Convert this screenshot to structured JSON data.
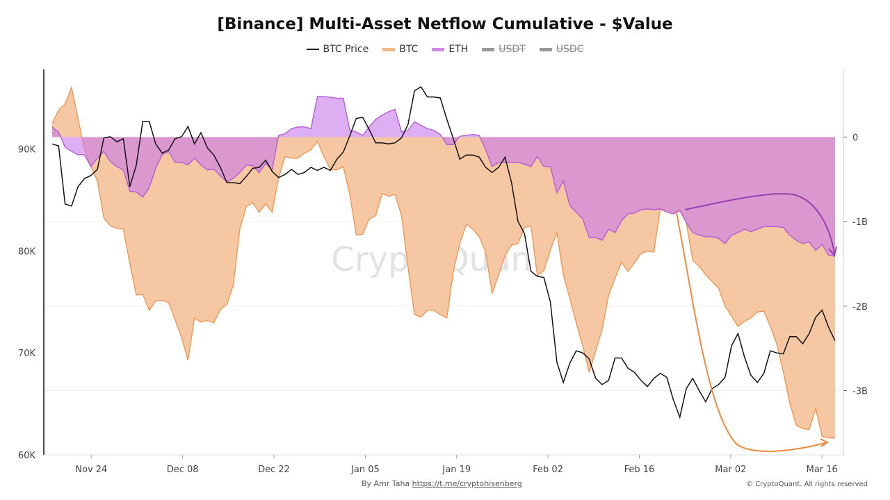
{
  "chart_data": {
    "type": "area",
    "title": "[Binance] Multi-Asset Netflow Cumulative - $Value",
    "legend": [
      {
        "name": "BTC Price",
        "color": "#111111",
        "hidden": false
      },
      {
        "name": "BTC",
        "color": "#f0924a",
        "hidden": false
      },
      {
        "name": "ETH",
        "color": "#b156d6",
        "hidden": false
      },
      {
        "name": "USDT",
        "color": "#999999",
        "hidden": true
      },
      {
        "name": "USDC",
        "color": "#999999",
        "hidden": true
      }
    ],
    "legend_placement": "top-center",
    "x_start": "Nov 18",
    "x_days": 120,
    "x_ticks": [
      {
        "label": "Nov 24",
        "day": 6
      },
      {
        "label": "Dec 08",
        "day": 20
      },
      {
        "label": "Dec 22",
        "day": 34
      },
      {
        "label": "Jan 05",
        "day": 48
      },
      {
        "label": "Jan 19",
        "day": 62
      },
      {
        "label": "Feb 02",
        "day": 76
      },
      {
        "label": "Feb 16",
        "day": 90
      },
      {
        "label": "Mar 02",
        "day": 104
      },
      {
        "label": "Mar 16",
        "day": 118
      }
    ],
    "left_axis": {
      "unit": "K",
      "ylim": [
        60,
        97.8
      ],
      "ticks": [
        {
          "v": 60,
          "label": "60K"
        },
        {
          "v": 70,
          "label": "70K"
        },
        {
          "v": 80,
          "label": "80K"
        },
        {
          "v": 90,
          "label": "90K"
        }
      ]
    },
    "right_axis": {
      "unit": "B",
      "ylim": [
        -3.76,
        0.8
      ],
      "ticks": [
        {
          "v": 0,
          "label": "0"
        },
        {
          "v": -1,
          "label": "-1B"
        },
        {
          "v": -2,
          "label": "-2B"
        },
        {
          "v": -3,
          "label": "-3B"
        }
      ]
    },
    "series": [
      {
        "name": "BTC Price",
        "axis": "left",
        "values": [
          90.5,
          90.3,
          84.6,
          84.4,
          86.3,
          87.1,
          87.4,
          88.0,
          91.1,
          91.2,
          90.7,
          91.0,
          86.3,
          88.4,
          92.7,
          92.7,
          90.5,
          89.6,
          89.9,
          91.0,
          91.2,
          92.2,
          90.5,
          91.6,
          90.1,
          89.4,
          88.2,
          86.7,
          86.7,
          86.6,
          87.3,
          88.1,
          88.2,
          88.9,
          87.8,
          87.2,
          87.5,
          88.0,
          87.5,
          87.7,
          88.2,
          87.9,
          88.2,
          87.9,
          89.0,
          89.7,
          91.3,
          93.0,
          93.1,
          91.9,
          90.6,
          90.6,
          90.5,
          90.6,
          91.1,
          92.4,
          95.7,
          96.1,
          95.1,
          95.1,
          95.0,
          92.9,
          91.0,
          89.0,
          89.4,
          89.4,
          89.2,
          88.2,
          87.7,
          88.2,
          89.2,
          86.7,
          82.9,
          81.7,
          78.0,
          77.5,
          77.4,
          75.0,
          69.1,
          67.1,
          69.0,
          70.2,
          70.0,
          69.4,
          67.5,
          66.9,
          67.3,
          69.5,
          69.5,
          68.5,
          68.1,
          67.3,
          66.7,
          67.5,
          68.0,
          67.6,
          65.4,
          63.7,
          66.5,
          67.5,
          66.3,
          65.2,
          66.5,
          66.9,
          67.6,
          70.7,
          71.9,
          69.6,
          67.8,
          67.1,
          68.0,
          70.2,
          70.0,
          69.9,
          71.6,
          71.6,
          70.9,
          71.9,
          73.5,
          74.2,
          72.5,
          71.2
        ]
      },
      {
        "name": "BTC",
        "axis": "right",
        "values": [
          0.16,
          0.32,
          0.39,
          0.59,
          0.22,
          -0.15,
          -0.35,
          -0.52,
          -0.96,
          -1.05,
          -1.08,
          -1.09,
          -1.5,
          -1.87,
          -1.86,
          -2.05,
          -1.94,
          -1.93,
          -1.96,
          -2.16,
          -2.37,
          -2.64,
          -2.14,
          -2.19,
          -2.17,
          -2.2,
          -2.04,
          -1.98,
          -1.75,
          -1.09,
          -0.82,
          -0.78,
          -0.89,
          -0.79,
          -0.89,
          -0.48,
          -0.23,
          -0.25,
          -0.25,
          -0.19,
          -0.15,
          -0.05,
          -0.23,
          -0.38,
          -0.39,
          -0.35,
          -0.68,
          -1.16,
          -1.15,
          -0.97,
          -0.93,
          -0.67,
          -0.7,
          -0.68,
          -0.93,
          -1.54,
          -2.1,
          -2.13,
          -2.05,
          -2.05,
          -2.1,
          -2.14,
          -1.59,
          -1.26,
          -1.03,
          -1.09,
          -1.18,
          -1.36,
          -1.85,
          -1.63,
          -1.4,
          -1.28,
          -1.26,
          -1.07,
          -1.05,
          -1.64,
          -1.58,
          -1.34,
          -1.13,
          -1.63,
          -1.91,
          -2.2,
          -2.47,
          -2.78,
          -2.53,
          -2.28,
          -1.87,
          -1.67,
          -1.48,
          -1.59,
          -1.49,
          -1.38,
          -1.35,
          -1.36,
          -0.85,
          -0.87,
          -0.89,
          -0.86,
          -1.01,
          -1.46,
          -1.53,
          -1.63,
          -1.71,
          -1.79,
          -2.0,
          -2.12,
          -2.24,
          -2.18,
          -2.14,
          -2.07,
          -2.06,
          -2.24,
          -2.45,
          -2.78,
          -3.15,
          -3.41,
          -3.45,
          -3.46,
          -3.21,
          -3.54,
          -3.56,
          -3.56
        ]
      },
      {
        "name": "ETH",
        "axis": "right",
        "values": [
          0.12,
          0.06,
          -0.12,
          -0.17,
          -0.21,
          -0.21,
          -0.35,
          -0.25,
          -0.17,
          -0.29,
          -0.35,
          -0.39,
          -0.64,
          -0.65,
          -0.71,
          -0.6,
          -0.37,
          -0.21,
          -0.17,
          -0.3,
          -0.3,
          -0.33,
          -0.25,
          -0.33,
          -0.39,
          -0.38,
          -0.46,
          -0.53,
          -0.49,
          -0.42,
          -0.33,
          -0.34,
          -0.42,
          -0.31,
          -0.39,
          0.02,
          0.04,
          0.1,
          0.12,
          0.12,
          0.1,
          0.48,
          0.48,
          0.47,
          0.46,
          0.46,
          0.08,
          0.06,
          0.02,
          0.12,
          0.21,
          0.26,
          0.3,
          0.33,
          0.06,
          0.08,
          0.18,
          0.14,
          0.1,
          0.08,
          0.03,
          -0.09,
          -0.09,
          0.01,
          0.02,
          0.03,
          0.02,
          -0.15,
          -0.35,
          -0.3,
          -0.3,
          -0.3,
          -0.3,
          -0.32,
          -0.35,
          -0.23,
          -0.35,
          -0.35,
          -0.66,
          -0.52,
          -0.81,
          -0.89,
          -0.97,
          -1.19,
          -1.19,
          -1.22,
          -1.09,
          -1.13,
          -0.99,
          -0.91,
          -0.9,
          -0.86,
          -0.85,
          -0.86,
          -0.85,
          -0.89,
          -0.91,
          -0.87,
          -1.01,
          -1.13,
          -1.16,
          -1.18,
          -1.18,
          -1.2,
          -1.26,
          -1.16,
          -1.13,
          -1.09,
          -1.12,
          -1.09,
          -1.06,
          -1.06,
          -1.06,
          -1.07,
          -1.16,
          -1.22,
          -1.26,
          -1.24,
          -1.34,
          -1.27,
          -1.4,
          -1.41
        ]
      }
    ],
    "watermark": "CryptoQuant",
    "grid": true
  },
  "footer": {
    "author": "By Amr Taha",
    "link": "https://t.me/cryptohisenberg",
    "copyright": "© CryptoQuant. All rights reserved"
  }
}
